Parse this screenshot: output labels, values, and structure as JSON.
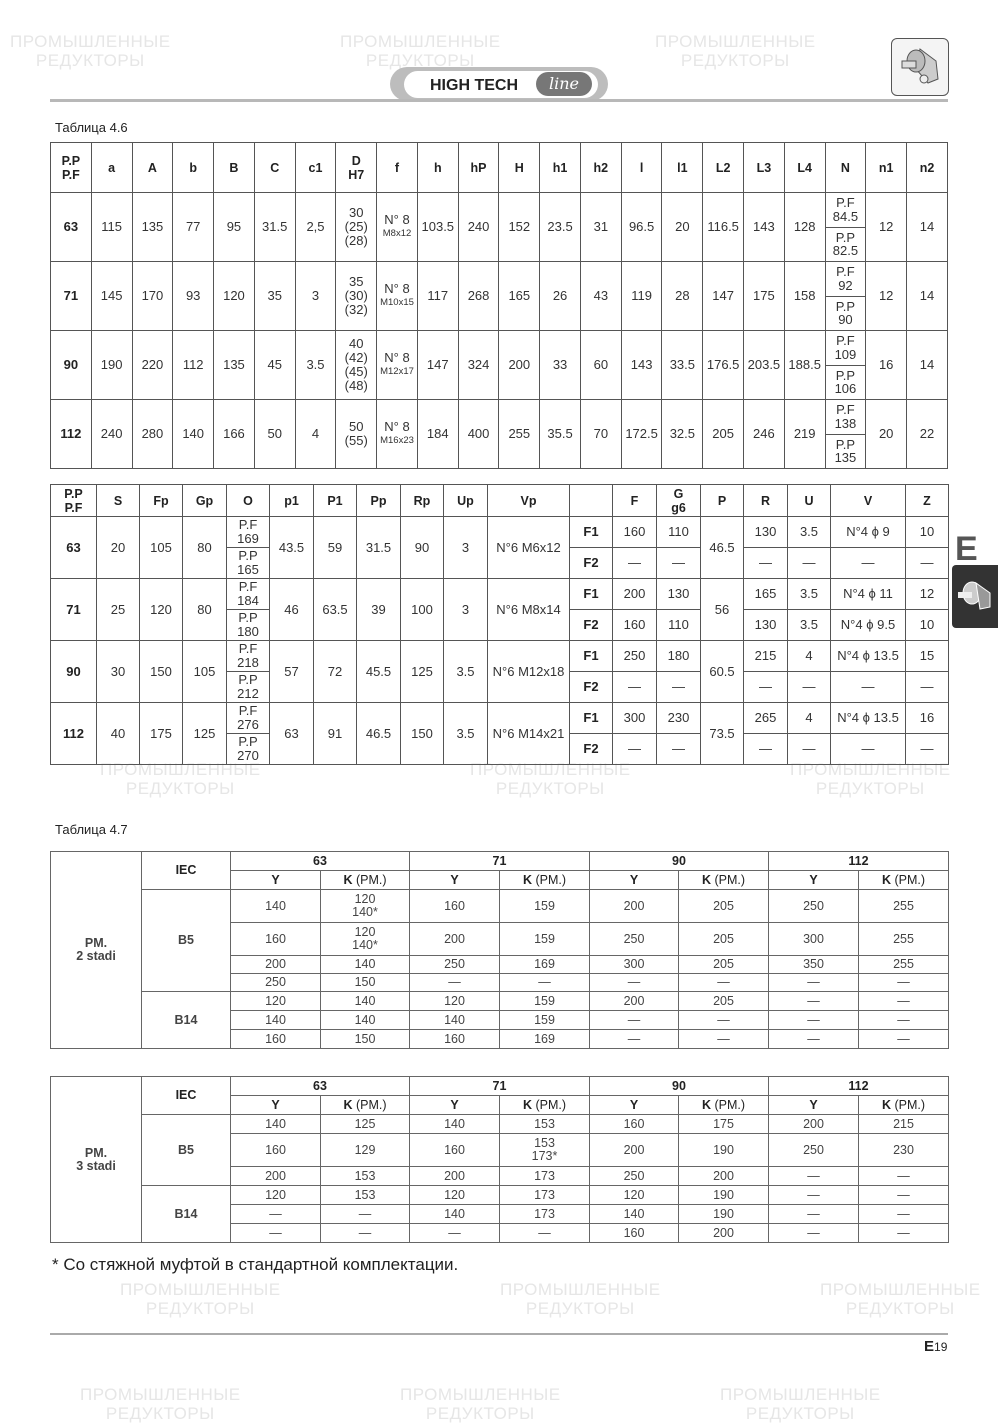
{
  "header": {
    "brand": "HIGH TECH",
    "brand_line": "line"
  },
  "watermark": "ПРОМЫШЛЕННЫЕ\nРЕДУКТОРЫ",
  "side_tab": {
    "letter": "E"
  },
  "table_4_6_caption": "Таблица  4.6",
  "t1": {
    "headers": [
      "P.P\nP.F",
      "a",
      "A",
      "b",
      "B",
      "C",
      "c1",
      "D\nH7",
      "f",
      "h",
      "hP",
      "H",
      "h1",
      "h2",
      "l",
      "l1",
      "L2",
      "L3",
      "L4",
      "N",
      "n1",
      "n2"
    ],
    "rows": [
      {
        "cells": [
          "63",
          "115",
          "135",
          "77",
          "95",
          "31.5",
          "2,5",
          "30\n(25)\n(28)",
          [
            "N° 8",
            "M8x12"
          ],
          "103.5",
          "240",
          "152",
          "23.5",
          "31",
          "96.5",
          "20",
          "116.5",
          "143",
          "128",
          [
            "P.F\n84.5",
            "P.P\n82.5"
          ],
          "12",
          "14"
        ]
      },
      {
        "cells": [
          "71",
          "145",
          "170",
          "93",
          "120",
          "35",
          "3",
          "35\n(30)\n(32)",
          [
            "N° 8",
            "M10x15"
          ],
          "117",
          "268",
          "165",
          "26",
          "43",
          "119",
          "28",
          "147",
          "175",
          "158",
          [
            "P.F\n92",
            "P.P\n90"
          ],
          "12",
          "14"
        ]
      },
      {
        "cells": [
          "90",
          "190",
          "220",
          "112",
          "135",
          "45",
          "3.5",
          "40\n(42)\n(45)\n(48)",
          [
            "N° 8",
            "M12x17"
          ],
          "147",
          "324",
          "200",
          "33",
          "60",
          "143",
          "33.5",
          "176.5",
          "203.5",
          "188.5",
          [
            "P.F\n109",
            "P.P\n106"
          ],
          "16",
          "14"
        ]
      },
      {
        "cells": [
          "112",
          "240",
          "280",
          "140",
          "166",
          "50",
          "4",
          "50\n(55)",
          [
            "N° 8",
            "M16x23"
          ],
          "184",
          "400",
          "255",
          "35.5",
          "70",
          "172.5",
          "32.5",
          "205",
          "246",
          "219",
          [
            "P.F\n138",
            "P.P\n135"
          ],
          "20",
          "22"
        ]
      }
    ]
  },
  "t2": {
    "headers": [
      "P.P\nP.F",
      "S",
      "Fp",
      "Gp",
      "O",
      "p1",
      "P1",
      "Pp",
      "Rp",
      "Up",
      "Vp",
      "",
      "F",
      "G\ng6",
      "P",
      "R",
      "U",
      "V",
      "Z"
    ],
    "groups": [
      {
        "size": "63",
        "S": "20",
        "Fp": "105",
        "Gp": "80",
        "O": [
          "P.F\n169",
          "P.P\n165"
        ],
        "p1": "43.5",
        "P1": "59",
        "Pp": "31.5",
        "Rp": "90",
        "Up": "3",
        "Vp": "N°6 M6x12",
        "P": "46.5",
        "flanges": [
          {
            "label": "F1",
            "F": "160",
            "G": "110",
            "R": "130",
            "U": "3.5",
            "V": "N°4 ϕ 9",
            "Z": "10"
          },
          {
            "label": "F2",
            "F": "—",
            "G": "—",
            "R": "—",
            "U": "—",
            "V": "—",
            "Z": "—"
          }
        ]
      },
      {
        "size": "71",
        "S": "25",
        "Fp": "120",
        "Gp": "80",
        "O": [
          "P.F\n184",
          "P.P\n180"
        ],
        "p1": "46",
        "P1": "63.5",
        "Pp": "39",
        "Rp": "100",
        "Up": "3",
        "Vp": "N°6 M8x14",
        "P": "56",
        "flanges": [
          {
            "label": "F1",
            "F": "200",
            "G": "130",
            "R": "165",
            "U": "3.5",
            "V": "N°4 ϕ 11",
            "Z": "12"
          },
          {
            "label": "F2",
            "F": "160",
            "G": "110",
            "R": "130",
            "U": "3.5",
            "V": "N°4 ϕ 9.5",
            "Z": "10"
          }
        ]
      },
      {
        "size": "90",
        "S": "30",
        "Fp": "150",
        "Gp": "105",
        "O": [
          "P.F\n218",
          "P.P\n212"
        ],
        "p1": "57",
        "P1": "72",
        "Pp": "45.5",
        "Rp": "125",
        "Up": "3.5",
        "Vp": "N°6 M12x18",
        "P": "60.5",
        "flanges": [
          {
            "label": "F1",
            "F": "250",
            "G": "180",
            "R": "215",
            "U": "4",
            "V": "N°4 ϕ 13.5",
            "Z": "15"
          },
          {
            "label": "F2",
            "F": "—",
            "G": "—",
            "R": "—",
            "U": "—",
            "V": "—",
            "Z": "—"
          }
        ]
      },
      {
        "size": "112",
        "S": "40",
        "Fp": "175",
        "Gp": "125",
        "O": [
          "P.F\n276",
          "P.P\n270"
        ],
        "p1": "63",
        "P1": "91",
        "Pp": "46.5",
        "Rp": "150",
        "Up": "3.5",
        "Vp": "N°6 M14x21",
        "P": "73.5",
        "flanges": [
          {
            "label": "F1",
            "F": "300",
            "G": "230",
            "R": "265",
            "U": "4",
            "V": "N°4 ϕ 13.5",
            "Z": "16"
          },
          {
            "label": "F2",
            "F": "—",
            "G": "—",
            "R": "—",
            "U": "—",
            "V": "—",
            "Z": "—"
          }
        ]
      }
    ]
  },
  "table_4_7_caption": "Таблица 4.7",
  "t47": [
    {
      "stage": "PM.\n2 stadi",
      "iec": "IEC",
      "sizes": [
        "63",
        "71",
        "90",
        "112"
      ],
      "col_y": "Y",
      "col_k": "K",
      "col_k_suffix": " (PM.)",
      "groups": [
        {
          "name": "B5",
          "rows": [
            [
              "140",
              "120\n140*",
              "160",
              "159",
              "200",
              "205",
              "250",
              "255"
            ],
            [
              "160",
              "120\n140*",
              "200",
              "159",
              "250",
              "205",
              "300",
              "255"
            ],
            [
              "200",
              "140",
              "250",
              "169",
              "300",
              "205",
              "350",
              "255"
            ],
            [
              "250",
              "150",
              "—",
              "—",
              "—",
              "—",
              "—",
              "—"
            ]
          ]
        },
        {
          "name": "B14",
          "rows": [
            [
              "120",
              "140",
              "120",
              "159",
              "200",
              "205",
              "—",
              "—"
            ],
            [
              "140",
              "140",
              "140",
              "159",
              "—",
              "—",
              "—",
              "—"
            ],
            [
              "160",
              "150",
              "160",
              "169",
              "—",
              "—",
              "—",
              "—"
            ]
          ]
        }
      ]
    },
    {
      "stage": "PM.\n3 stadi",
      "iec": "IEC",
      "sizes": [
        "63",
        "71",
        "90",
        "112"
      ],
      "col_y": "Y",
      "col_k": "K",
      "col_k_suffix": " (PM.)",
      "groups": [
        {
          "name": "B5",
          "rows": [
            [
              "140",
              "125",
              "140",
              "153",
              "160",
              "175",
              "200",
              "215"
            ],
            [
              "160",
              "129",
              "160",
              "153\n173*",
              "200",
              "190",
              "250",
              "230"
            ],
            [
              "200",
              "153",
              "200",
              "173",
              "250",
              "200",
              "—",
              "—"
            ]
          ]
        },
        {
          "name": "B14",
          "rows": [
            [
              "120",
              "153",
              "120",
              "173",
              "120",
              "190",
              "—",
              "—"
            ],
            [
              "—",
              "—",
              "140",
              "173",
              "140",
              "190",
              "—",
              "—"
            ],
            [
              "—",
              "—",
              "—",
              "—",
              "160",
              "200",
              "—",
              "—"
            ]
          ]
        }
      ]
    }
  ],
  "footnote": "* Со стяжной муфтой в стандартной комплектации.",
  "footer": {
    "page_letter": "E",
    "page_number": "19"
  }
}
